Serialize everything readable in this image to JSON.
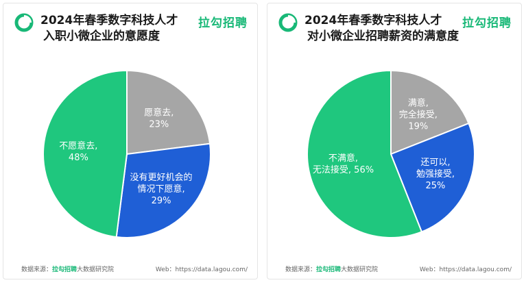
{
  "brand_color": "#18b877",
  "cards": [
    {
      "title_line1": "2024年春季数字科技人才",
      "title_line2": "入职小微企业的意愿度",
      "brand": "拉勾招聘",
      "footer_prefix": "数据来源：",
      "footer_brand": "拉勾招聘",
      "footer_suffix": "大数据研究院",
      "web": "Web：https://data.lagou.com/"
    },
    {
      "title_line1": "2024年春季数字科技人才",
      "title_line2": "对小微企业招聘薪资的满意度",
      "brand": "拉勾招聘",
      "footer_prefix": "数据来源：",
      "footer_brand": "拉勾招聘",
      "footer_suffix": "大数据研究院",
      "web": "Web：https://data.lagou.com/"
    }
  ],
  "chart_data": [
    {
      "type": "pie",
      "slices": [
        {
          "label_lines": [
            "愿意去,",
            "23%"
          ],
          "value": 23,
          "color": "#a6a6a6"
        },
        {
          "label_lines": [
            "没有更好机会的",
            "情况下愿意,",
            "29%"
          ],
          "value": 29,
          "color": "#1f5fd6"
        },
        {
          "label_lines": [
            "不愿意去,",
            "48%"
          ],
          "value": 48,
          "color": "#1fc77e"
        }
      ]
    },
    {
      "type": "pie",
      "slices": [
        {
          "label_lines": [
            "满意,",
            "完全接受,",
            "19%"
          ],
          "value": 19,
          "color": "#a6a6a6"
        },
        {
          "label_lines": [
            "还可以,",
            "勉强接受,",
            "25%"
          ],
          "value": 25,
          "color": "#1f5fd6"
        },
        {
          "label_lines": [
            "不满意,",
            "无法接受, 56%"
          ],
          "value": 56,
          "color": "#1fc77e"
        }
      ]
    }
  ]
}
